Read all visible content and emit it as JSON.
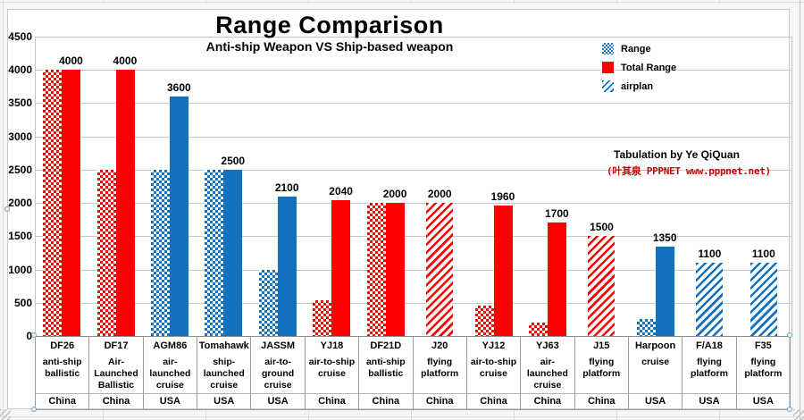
{
  "chart_data": {
    "type": "bar",
    "title": "Range Comparison",
    "subtitle": "Anti-ship Weapon VS Ship-based weapon",
    "xlabel": "",
    "ylabel": "",
    "ylim": [
      0,
      4500
    ],
    "yticks": [
      0,
      500,
      1000,
      1500,
      2000,
      2500,
      3000,
      3500,
      4000,
      4500
    ],
    "grid": true,
    "legend_position": "top-right",
    "country_colors": {
      "China": "#fe0000",
      "USA": "#1272bf"
    },
    "series_styles": {
      "Range": "checker",
      "Total Range": "solid",
      "airplan": "diagonal"
    },
    "legend": [
      {
        "label": "Range",
        "pattern": "checker",
        "color": "#1272bf"
      },
      {
        "label": "Total Range",
        "pattern": "solid",
        "color": "#fe0000"
      },
      {
        "label": "airplan",
        "pattern": "diagonal",
        "color": "#1272bf"
      }
    ],
    "categories": [
      {
        "name": "DF26",
        "type_lines": [
          "anti-ship",
          "ballistic"
        ],
        "country": "China",
        "bars": [
          {
            "series": "Range",
            "value": 4000
          },
          {
            "series": "Total Range",
            "value": 4000
          }
        ],
        "data_label": "4000"
      },
      {
        "name": "DF17",
        "type_lines": [
          "Air-",
          "Launched",
          "Ballistic"
        ],
        "country": "China",
        "bars": [
          {
            "series": "Range",
            "value": 2500
          },
          {
            "series": "Total Range",
            "value": 4000
          }
        ],
        "data_label": "4000"
      },
      {
        "name": "AGM86",
        "type_lines": [
          "air-",
          "launched",
          "cruise"
        ],
        "country": "USA",
        "bars": [
          {
            "series": "Range",
            "value": 2500
          },
          {
            "series": "Total Range",
            "value": 3600
          }
        ],
        "data_label": "3600"
      },
      {
        "name": "Tomahawk",
        "type_lines": [
          "ship-",
          "launched",
          "cruise"
        ],
        "country": "USA",
        "bars": [
          {
            "series": "Range",
            "value": 2500
          },
          {
            "series": "Total Range",
            "value": 2500
          }
        ],
        "data_label": "2500"
      },
      {
        "name": "JASSM",
        "type_lines": [
          "air-to-",
          "ground",
          "cruise"
        ],
        "country": "USA",
        "bars": [
          {
            "series": "Range",
            "value": 1000
          },
          {
            "series": "Total Range",
            "value": 2100
          }
        ],
        "data_label": "2100"
      },
      {
        "name": "YJ18",
        "type_lines": [
          "air-to-ship",
          "cruise"
        ],
        "country": "China",
        "bars": [
          {
            "series": "Range",
            "value": 540
          },
          {
            "series": "Total Range",
            "value": 2040
          }
        ],
        "data_label": "2040"
      },
      {
        "name": "DF21D",
        "type_lines": [
          "anti-ship",
          "ballistic"
        ],
        "country": "China",
        "bars": [
          {
            "series": "Range",
            "value": 2000
          },
          {
            "series": "Total Range",
            "value": 2000
          }
        ],
        "data_label": "2000"
      },
      {
        "name": "J20",
        "type_lines": [
          "flying",
          "platform"
        ],
        "country": "China",
        "bars": [
          {
            "series": "airplan",
            "value": 2000
          }
        ],
        "data_label": "2000"
      },
      {
        "name": "YJ12",
        "type_lines": [
          "air-to-ship",
          "cruise"
        ],
        "country": "China",
        "bars": [
          {
            "series": "Range",
            "value": 460
          },
          {
            "series": "Total Range",
            "value": 1960
          }
        ],
        "data_label": "1960"
      },
      {
        "name": "YJ63",
        "type_lines": [
          "air-",
          "launched",
          "cruise"
        ],
        "country": "China",
        "bars": [
          {
            "series": "Range",
            "value": 200
          },
          {
            "series": "Total Range",
            "value": 1700
          }
        ],
        "data_label": "1700"
      },
      {
        "name": "J15",
        "type_lines": [
          "flying",
          "platform"
        ],
        "country": "China",
        "bars": [
          {
            "series": "airplan",
            "value": 1500
          }
        ],
        "data_label": "1500"
      },
      {
        "name": "Harpoon",
        "type_lines": [
          "cruise"
        ],
        "country": "USA",
        "bars": [
          {
            "series": "Range",
            "value": 250
          },
          {
            "series": "Total Range",
            "value": 1350
          }
        ],
        "data_label": "1350"
      },
      {
        "name": "F/A18",
        "type_lines": [
          "flying",
          "platform"
        ],
        "country": "USA",
        "bars": [
          {
            "series": "airplan",
            "value": 1100
          }
        ],
        "data_label": "1100"
      },
      {
        "name": "F35",
        "type_lines": [
          "flying",
          "platform"
        ],
        "country": "USA",
        "bars": [
          {
            "series": "airplan",
            "value": 1100
          }
        ],
        "data_label": "1100"
      }
    ],
    "annotation": {
      "line1": "Tabulation by Ye QiQuan",
      "line2": "(叶其泉 PPPNET www.pppnet.net)"
    }
  }
}
